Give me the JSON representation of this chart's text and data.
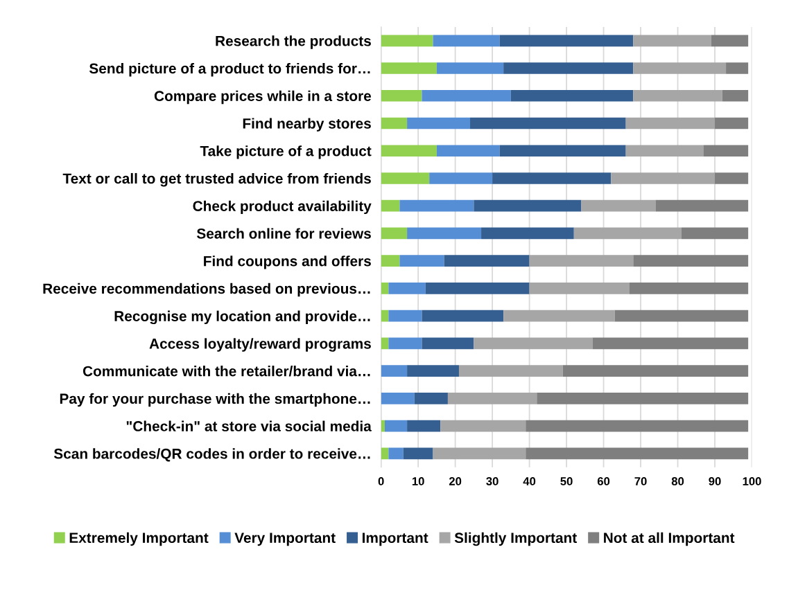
{
  "chart_data": {
    "type": "bar",
    "orientation": "horizontal",
    "stacked": true,
    "categories": [
      "Research the products",
      "Send picture of a product to friends for…",
      "Compare prices while in a store",
      "Find nearby stores",
      "Take picture of a product",
      "Text or call to get trusted advice from friends",
      "Check product availability",
      "Search online for reviews",
      "Find coupons and offers",
      "Receive recommendations based on previous…",
      "Recognise my location and provide…",
      "Access loyalty/reward programs",
      "Communicate with the retailer/brand via…",
      "Pay for your purchase with the smartphone…",
      "\"Check-in\" at store via social media",
      "Scan barcodes/QR codes in order to receive…"
    ],
    "series": [
      {
        "name": "Extremely Important",
        "color": "#92d050",
        "values": [
          14,
          15,
          11,
          7,
          15,
          13,
          5,
          7,
          5,
          2,
          2,
          2,
          0,
          0,
          1,
          2
        ]
      },
      {
        "name": "Very Important",
        "color": "#558ed5",
        "values": [
          18,
          18,
          24,
          17,
          17,
          17,
          20,
          20,
          12,
          10,
          9,
          9,
          7,
          9,
          6,
          4
        ]
      },
      {
        "name": "Important",
        "color": "#355f91",
        "values": [
          36,
          35,
          33,
          42,
          34,
          32,
          29,
          25,
          23,
          28,
          22,
          14,
          14,
          9,
          9,
          8
        ]
      },
      {
        "name": "Slightly Important",
        "color": "#a6a6a6",
        "values": [
          21,
          25,
          24,
          24,
          21,
          28,
          20,
          29,
          28,
          27,
          30,
          32,
          28,
          24,
          23,
          25
        ]
      },
      {
        "name": "Not at all Important",
        "color": "#7f7f7f",
        "values": [
          10,
          6,
          7,
          9,
          12,
          9,
          25,
          18,
          31,
          32,
          36,
          42,
          50,
          57,
          60,
          60
        ]
      }
    ],
    "xlim": [
      0,
      100
    ],
    "xticks": [
      0,
      10,
      20,
      30,
      40,
      50,
      60,
      70,
      80,
      90,
      100
    ],
    "grid": "x",
    "legend": "bottom"
  }
}
